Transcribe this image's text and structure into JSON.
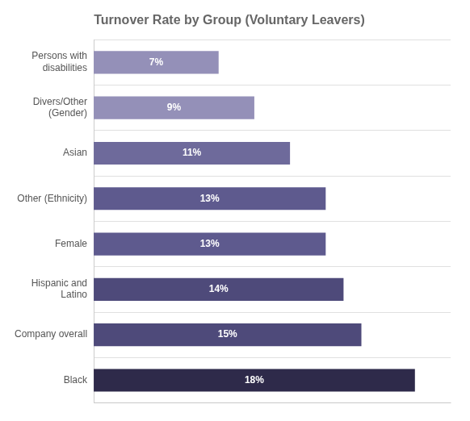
{
  "chart_data": {
    "type": "bar",
    "orientation": "horizontal",
    "title": "Turnover Rate by Group (Voluntary Leavers)",
    "categories": [
      "Persons with\ndisabilities",
      "Divers/Other\n(Gender)",
      "Asian",
      "Other (Ethnicity)",
      "Female",
      "Hispanic and\nLatino",
      "Company overall",
      "Black"
    ],
    "values": [
      7,
      9,
      11,
      13,
      13,
      14,
      15,
      18
    ],
    "value_labels": [
      "7%",
      "9%",
      "11%",
      "13%",
      "13%",
      "14%",
      "15%",
      "18%"
    ],
    "colors": [
      "#9490b8",
      "#9490b8",
      "#6e6a9b",
      "#5e5a8e",
      "#5e5a8e",
      "#4e4a7a",
      "#4e4a7a",
      "#2e2a4a"
    ],
    "xlim": [
      0,
      20
    ],
    "data_labels": true,
    "tick_labels": "y"
  }
}
